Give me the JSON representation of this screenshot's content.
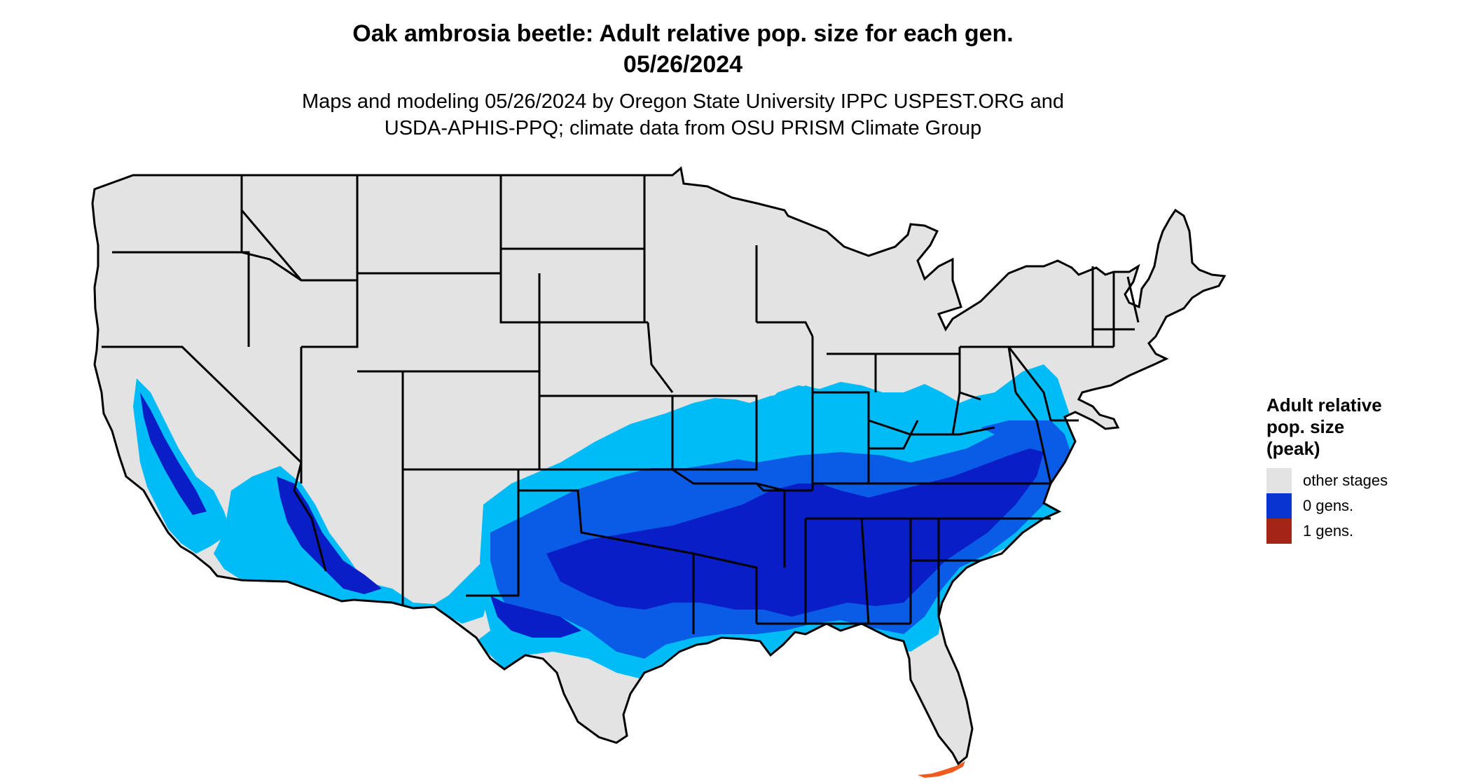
{
  "title_line1": "Oak ambrosia beetle: Adult relative pop. size for each gen.",
  "title_line2": "05/26/2024",
  "subtitle_line1": "Maps and modeling 05/26/2024 by Oregon State University IPPC USPEST.ORG and",
  "subtitle_line2": "USDA-APHIS-PPQ; climate data from OSU PRISM Climate Group",
  "legend": {
    "title_line1": "Adult relative",
    "title_line2": "pop. size",
    "title_line3": "(peak)",
    "items": [
      {
        "label": "other stages",
        "color": "#e3e3e3"
      },
      {
        "label": "0 gens.",
        "color": "#0a34d2"
      },
      {
        "label": "1 gens.",
        "color": "#a42418"
      }
    ]
  },
  "map_colors": {
    "other_stages": "#e3e3e3",
    "light_blue": "#00bcf6",
    "mid_blue": "#0a5ce6",
    "dark_blue": "#0a1ec8",
    "one_gen_orange": "#f05a1e",
    "state_border": "#000000"
  }
}
